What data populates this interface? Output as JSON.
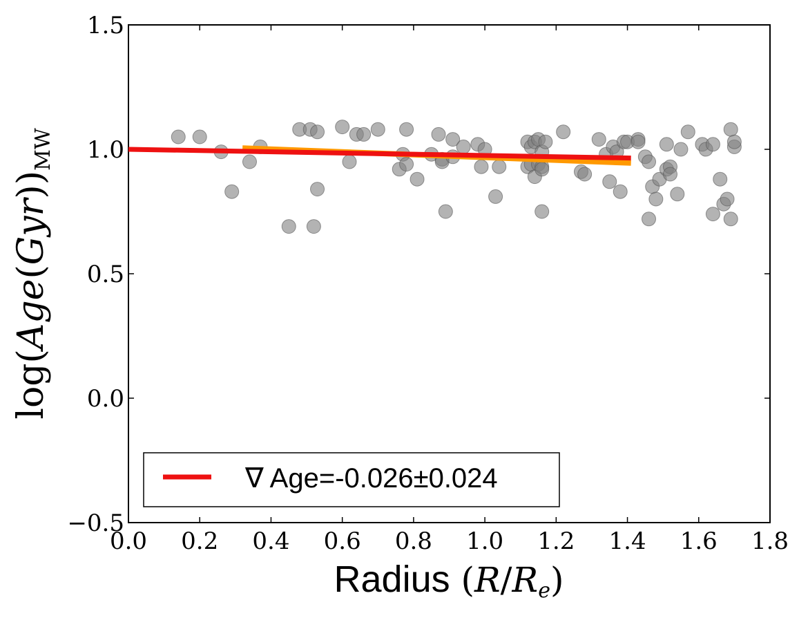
{
  "chart_data": {
    "type": "scatter",
    "title": "",
    "xlabel": "Radius (R/R_e)",
    "xlabel_plain": "Radius",
    "ylabel": "log(Age(Gyr))_MW",
    "xlim": [
      0.0,
      1.8
    ],
    "ylim": [
      -0.5,
      1.5
    ],
    "xticks": [
      0.0,
      0.2,
      0.4,
      0.6,
      0.8,
      1.0,
      1.2,
      1.4,
      1.6,
      1.8
    ],
    "xtick_labels": [
      "0.0",
      "0.2",
      "0.4",
      "0.6",
      "0.8",
      "1.0",
      "1.2",
      "1.4",
      "1.6",
      "1.8"
    ],
    "yticks": [
      -0.5,
      0.0,
      0.5,
      1.0,
      1.5
    ],
    "ytick_labels": [
      "−0.5",
      "0.0",
      "0.5",
      "1.0",
      "1.5"
    ],
    "grid": false,
    "legend_position": "lower-left",
    "points": {
      "name": "data",
      "color": "#808080",
      "x": [
        0.14,
        0.2,
        0.26,
        0.29,
        0.34,
        0.37,
        0.45,
        0.48,
        0.51,
        0.52,
        0.53,
        0.53,
        0.6,
        0.62,
        0.64,
        0.66,
        0.7,
        0.76,
        0.77,
        0.78,
        0.78,
        0.81,
        0.85,
        0.87,
        0.88,
        0.88,
        0.89,
        0.91,
        0.91,
        0.94,
        0.98,
        0.99,
        1.0,
        1.03,
        1.04,
        1.12,
        1.12,
        1.13,
        1.13,
        1.14,
        1.14,
        1.15,
        1.15,
        1.16,
        1.16,
        1.16,
        1.16,
        1.17,
        1.22,
        1.27,
        1.28,
        1.32,
        1.34,
        1.35,
        1.36,
        1.37,
        1.38,
        1.39,
        1.4,
        1.43,
        1.43,
        1.45,
        1.46,
        1.46,
        1.47,
        1.48,
        1.49,
        1.51,
        1.51,
        1.52,
        1.52,
        1.54,
        1.55,
        1.57,
        1.61,
        1.62,
        1.64,
        1.64,
        1.66,
        1.67,
        1.68,
        1.69,
        1.69,
        1.7,
        1.7
      ],
      "y": [
        1.05,
        1.05,
        0.99,
        0.83,
        0.95,
        1.01,
        0.69,
        1.08,
        1.08,
        0.69,
        0.84,
        1.07,
        1.09,
        0.95,
        1.06,
        1.06,
        1.08,
        0.92,
        0.98,
        0.94,
        1.08,
        0.88,
        0.98,
        1.06,
        0.96,
        0.95,
        0.75,
        0.97,
        1.04,
        1.01,
        1.02,
        0.93,
        1.0,
        0.81,
        0.93,
        1.03,
        0.93,
        1.01,
        0.94,
        0.89,
        1.03,
        0.94,
        1.04,
        0.93,
        0.99,
        0.75,
        0.92,
        1.03,
        1.07,
        0.91,
        0.9,
        1.04,
        0.98,
        0.87,
        1.01,
        0.99,
        0.83,
        1.03,
        1.03,
        1.04,
        1.03,
        0.97,
        0.95,
        0.72,
        0.85,
        0.8,
        0.88,
        0.92,
        1.02,
        0.93,
        0.9,
        0.82,
        1.0,
        1.07,
        1.02,
        1.0,
        1.02,
        0.74,
        0.88,
        0.78,
        0.8,
        1.08,
        0.72,
        1.01,
        1.03
      ]
    },
    "fit_lines": [
      {
        "name": "fit-orange",
        "color": "#ff9900",
        "x": [
          0.32,
          1.41
        ],
        "y": [
          1.005,
          0.945
        ]
      },
      {
        "name": "fit-red",
        "color": "#ee1111",
        "x": [
          0.0,
          1.41
        ],
        "y": [
          1.0,
          0.965
        ]
      }
    ],
    "legend": [
      {
        "label": "∇ Age=-0.026±0.024",
        "color": "#ee1111"
      }
    ]
  },
  "labels": {
    "xlabel_text": "Radius",
    "legend_text": "∇ Age=-0.026±0.024"
  }
}
